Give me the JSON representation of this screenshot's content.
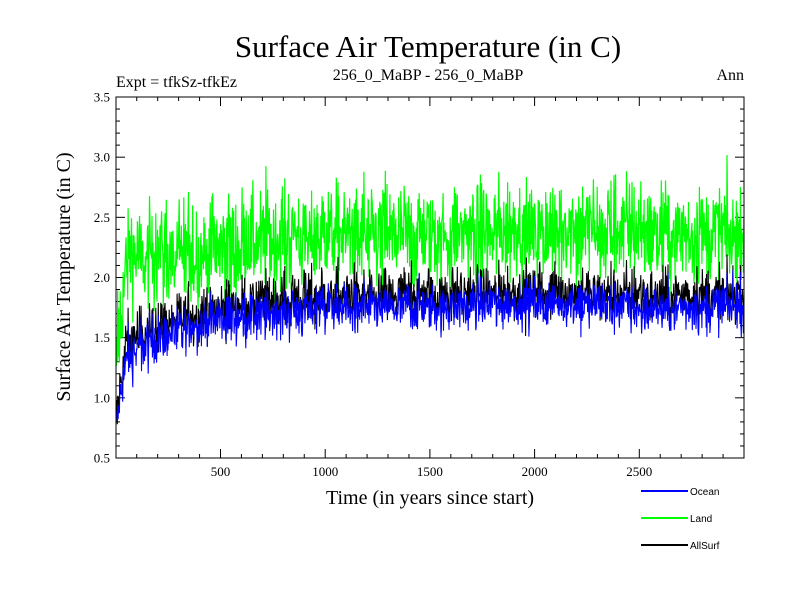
{
  "chart_data": {
    "type": "line",
    "title": "Surface Air Temperature (in C)",
    "subtitle_left": "Expt = tfkSz-tfkEz",
    "subtitle_center": "256_0_MaBP - 256_0_MaBP",
    "subtitle_right": "Ann",
    "xlabel": "Time (in years since start)",
    "ylabel": "Surface Air Temperature (in C)",
    "xlim": [
      1,
      3000
    ],
    "ylim": [
      0.5,
      3.5
    ],
    "x_ticks": [
      500,
      1000,
      1500,
      2000,
      2500
    ],
    "x_tick_labels": [
      "500",
      "1000",
      "1500",
      "2000",
      "2500"
    ],
    "y_ticks": [
      0.5,
      1.0,
      1.5,
      2.0,
      2.5,
      3.0,
      3.5
    ],
    "y_tick_labels": [
      "0.5",
      "1.0",
      "1.5",
      "2.0",
      "2.5",
      "3.0",
      "3.5"
    ],
    "legend_position": "bottom-right, outside plot",
    "series": [
      {
        "name": "Land",
        "color": "#00ff00",
        "trend_x": [
          1,
          50,
          200,
          500,
          1000,
          1500,
          2000,
          2500,
          3000
        ],
        "trend_y": [
          1.25,
          2.15,
          2.2,
          2.25,
          2.35,
          2.35,
          2.4,
          2.4,
          2.35
        ],
        "noise_amplitude": 0.25,
        "range": [
          1.0,
          3.25
        ]
      },
      {
        "name": "Ocean",
        "color": "#0000ff",
        "trend_x": [
          1,
          50,
          200,
          500,
          1000,
          1500,
          2000,
          2500,
          3000
        ],
        "trend_y": [
          0.75,
          1.35,
          1.5,
          1.65,
          1.75,
          1.75,
          1.8,
          1.75,
          1.75
        ],
        "noise_amplitude": 0.12,
        "range": [
          0.6,
          2.3
        ]
      },
      {
        "name": "AllSurf",
        "color": "#000000",
        "trend_x": [
          1,
          50,
          200,
          500,
          1000,
          1500,
          2000,
          2500,
          3000
        ],
        "trend_y": [
          0.8,
          1.45,
          1.6,
          1.75,
          1.85,
          1.85,
          1.9,
          1.85,
          1.85
        ],
        "noise_amplitude": 0.13,
        "range": [
          0.65,
          2.3
        ]
      }
    ]
  }
}
